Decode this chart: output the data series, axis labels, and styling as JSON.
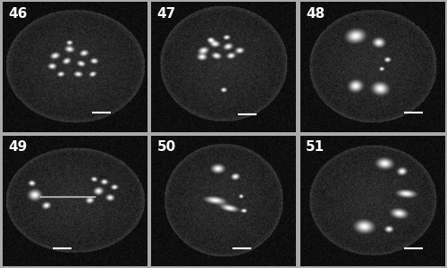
{
  "figsize": [
    5.0,
    3.0
  ],
  "dpi": 100,
  "background_color": "#aaaaaa",
  "panel_labels": [
    "46",
    "47",
    "48",
    "49",
    "50",
    "51"
  ],
  "label_color": "white",
  "label_fontsize": 11,
  "label_fontweight": "bold",
  "grid_rows": 2,
  "grid_cols": 3,
  "scale_bar_color": "white",
  "scale_bar_linewidth": 1.5,
  "panels": [
    {
      "cell": [
        0.48,
        0.43,
        0.5,
        0.5
      ],
      "chromosomes": [
        [
          0.36,
          0.58,
          0.055,
          0.04,
          20
        ],
        [
          0.46,
          0.63,
          0.055,
          0.04,
          -10
        ],
        [
          0.56,
          0.6,
          0.05,
          0.038,
          15
        ],
        [
          0.63,
          0.54,
          0.045,
          0.035,
          -5
        ],
        [
          0.34,
          0.5,
          0.048,
          0.038,
          0
        ],
        [
          0.44,
          0.54,
          0.05,
          0.038,
          30
        ],
        [
          0.54,
          0.52,
          0.048,
          0.036,
          -20
        ],
        [
          0.4,
          0.44,
          0.042,
          0.032,
          10
        ],
        [
          0.52,
          0.44,
          0.05,
          0.035,
          -5
        ],
        [
          0.62,
          0.44,
          0.042,
          0.032,
          25
        ],
        [
          0.46,
          0.68,
          0.036,
          0.028,
          0
        ]
      ],
      "lines": [],
      "scale_bar": [
        0.62,
        0.15,
        0.75,
        0.15
      ]
    },
    {
      "cell": [
        0.44,
        0.44,
        0.5,
        0.52
      ],
      "chromosomes": [
        [
          0.36,
          0.62,
          0.06,
          0.042,
          15
        ],
        [
          0.44,
          0.67,
          0.055,
          0.04,
          -5
        ],
        [
          0.53,
          0.65,
          0.055,
          0.04,
          20
        ],
        [
          0.61,
          0.62,
          0.05,
          0.038,
          5
        ],
        [
          0.35,
          0.57,
          0.055,
          0.04,
          0
        ],
        [
          0.45,
          0.58,
          0.055,
          0.04,
          -15
        ],
        [
          0.55,
          0.58,
          0.05,
          0.038,
          10
        ],
        [
          0.41,
          0.7,
          0.04,
          0.032,
          0
        ],
        [
          0.52,
          0.72,
          0.04,
          0.03,
          5
        ],
        [
          0.5,
          0.32,
          0.036,
          0.03,
          0
        ]
      ],
      "lines": [],
      "scale_bar": [
        0.6,
        0.14,
        0.73,
        0.14
      ]
    },
    {
      "cell": [
        0.44,
        0.43,
        0.5,
        0.5
      ],
      "chromosomes": [
        [
          0.38,
          0.73,
          0.11,
          0.085,
          10
        ],
        [
          0.54,
          0.68,
          0.07,
          0.06,
          -5
        ],
        [
          0.38,
          0.35,
          0.082,
          0.075,
          15
        ],
        [
          0.55,
          0.33,
          0.095,
          0.08,
          -10
        ],
        [
          0.6,
          0.55,
          0.038,
          0.032,
          0
        ],
        [
          0.56,
          0.48,
          0.03,
          0.026,
          0
        ]
      ],
      "lines": [],
      "scale_bar": [
        0.72,
        0.15,
        0.85,
        0.15
      ]
    },
    {
      "cell": [
        0.48,
        0.4,
        0.5,
        0.5
      ],
      "chromosomes": [
        [
          0.22,
          0.54,
          0.075,
          0.068,
          0
        ],
        [
          0.3,
          0.46,
          0.05,
          0.042,
          20
        ],
        [
          0.2,
          0.63,
          0.04,
          0.034,
          -10
        ],
        [
          0.66,
          0.57,
          0.055,
          0.048,
          10
        ],
        [
          0.74,
          0.52,
          0.048,
          0.04,
          -5
        ],
        [
          0.6,
          0.5,
          0.048,
          0.04,
          15
        ],
        [
          0.7,
          0.64,
          0.042,
          0.034,
          0
        ],
        [
          0.77,
          0.6,
          0.04,
          0.032,
          5
        ],
        [
          0.63,
          0.66,
          0.036,
          0.03,
          -15
        ]
      ],
      "lines": [
        [
          0.26,
          0.53,
          0.64,
          0.53
        ]
      ],
      "scale_bar": [
        0.35,
        0.14,
        0.48,
        0.14
      ]
    },
    {
      "cell": [
        0.41,
        0.43,
        0.5,
        0.5
      ],
      "chromosomes": [
        [
          0.46,
          0.74,
          0.075,
          0.055,
          0
        ],
        [
          0.58,
          0.68,
          0.048,
          0.04,
          10
        ],
        [
          0.44,
          0.5,
          0.045,
          0.12,
          82
        ],
        [
          0.54,
          0.44,
          0.04,
          0.1,
          78
        ],
        [
          0.64,
          0.42,
          0.032,
          0.026,
          0
        ],
        [
          0.62,
          0.53,
          0.026,
          0.026,
          0
        ]
      ],
      "lines": [],
      "scale_bar": [
        0.56,
        0.14,
        0.69,
        0.14
      ]
    },
    {
      "cell": [
        0.44,
        0.42,
        0.5,
        0.5
      ],
      "chromosomes": [
        [
          0.58,
          0.78,
          0.095,
          0.068,
          -5
        ],
        [
          0.7,
          0.72,
          0.055,
          0.048,
          10
        ],
        [
          0.73,
          0.55,
          0.048,
          0.11,
          85
        ],
        [
          0.68,
          0.4,
          0.06,
          0.095,
          80
        ],
        [
          0.44,
          0.3,
          0.11,
          0.082,
          -5
        ],
        [
          0.61,
          0.28,
          0.048,
          0.04,
          0
        ]
      ],
      "lines": [],
      "scale_bar": [
        0.72,
        0.14,
        0.85,
        0.14
      ]
    }
  ]
}
